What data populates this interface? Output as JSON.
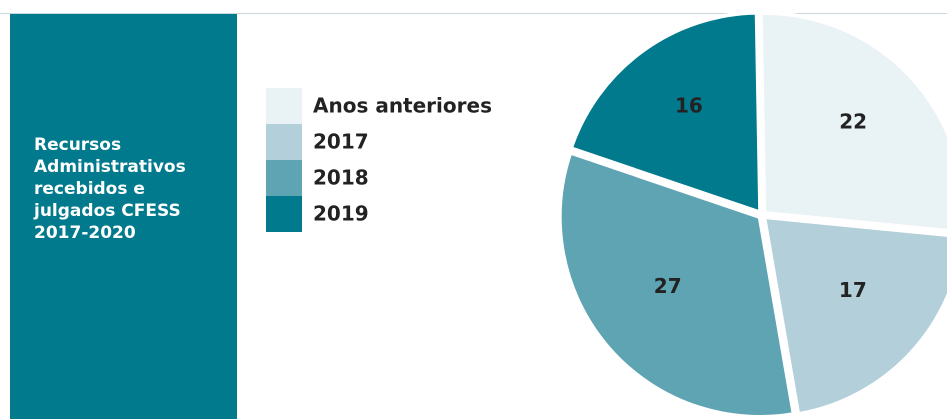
{
  "chart_data": {
    "type": "pie",
    "title": "Recursos Administrativos recebidos e julgados CFESS 2017-2020",
    "categories": [
      "Anos anteriores",
      "2017",
      "2018",
      "2019"
    ],
    "values": [
      22,
      17,
      27,
      16
    ],
    "colors": [
      "#e9f2f4",
      "#b3cfd9",
      "#5ea4b3",
      "#007a8c"
    ]
  }
}
